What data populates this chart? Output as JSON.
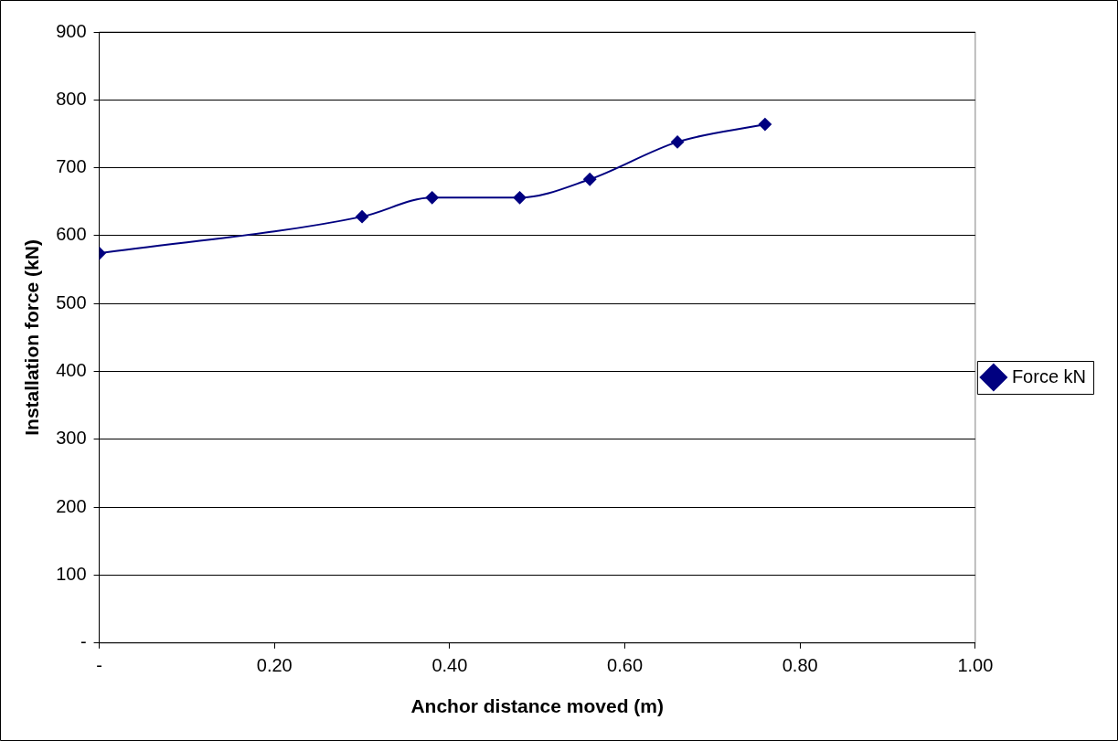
{
  "chart_data": {
    "type": "line",
    "xlabel": "Anchor distance moved (m)",
    "ylabel": "Installation force (kN)",
    "x": [
      0,
      0.3,
      0.38,
      0.48,
      0.56,
      0.66,
      0.76
    ],
    "series": [
      {
        "name": "Force kN",
        "color": "#000080",
        "values": [
          574,
          628,
          656,
          656,
          683,
          738,
          764
        ]
      }
    ],
    "xlim": [
      0,
      1
    ],
    "xticks": [
      {
        "value": 0,
        "label": "-"
      },
      {
        "value": 0.2,
        "label": "0.20"
      },
      {
        "value": 0.4,
        "label": "0.40"
      },
      {
        "value": 0.6,
        "label": "0.60"
      },
      {
        "value": 0.8,
        "label": "0.80"
      },
      {
        "value": 1,
        "label": "1.00"
      }
    ],
    "ylim": [
      0,
      900
    ],
    "yticks": [
      {
        "value": 0,
        "label": "-"
      },
      100,
      200,
      300,
      400,
      500,
      600,
      700,
      800,
      900
    ],
    "grid": "y",
    "legend": "right",
    "marker": "diamond",
    "line_style": "solid"
  }
}
